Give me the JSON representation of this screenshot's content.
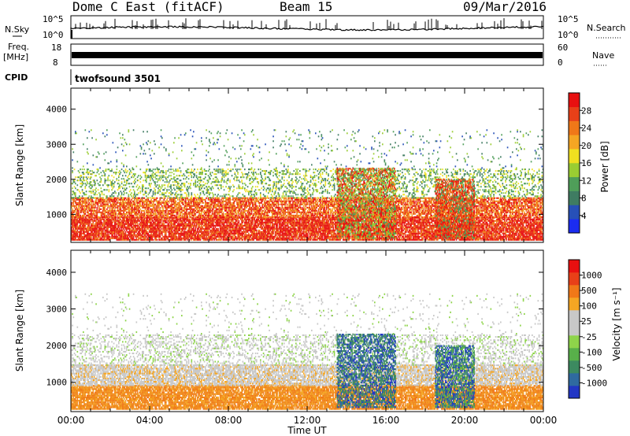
{
  "header": {
    "station": "Dome C East (fitACF)",
    "beam": "Beam 15",
    "date": "09/Mar/2016"
  },
  "panels": {
    "nsky_label": "N.Sky",
    "nsky_ticks": [
      "10^5",
      "10^0"
    ],
    "nsearch_label": "N.Search",
    "freq_label_1": "Freq.",
    "freq_label_2": "[MHz]",
    "freq_ticks": [
      "18",
      "8"
    ],
    "nave_label": "Nave",
    "nave_ticks": [
      "60",
      "0"
    ],
    "cpid_label": "CPID",
    "cpid_value": "twofsound  3501"
  },
  "chart_data": [
    {
      "type": "heatmap",
      "name": "power",
      "ylabel": "Slant Range [km]",
      "y_ticks": [
        1000,
        2000,
        3000,
        4000
      ],
      "ylim": [
        200,
        4600
      ],
      "x_ticks": [
        "00:00",
        "04:00",
        "08:00",
        "12:00",
        "16:00",
        "20:00",
        "00:00"
      ],
      "xlim_hours": [
        0,
        24
      ],
      "colorbar": {
        "label": "Power [dB]",
        "ticks": [
          "4",
          "8",
          "12",
          "16",
          "20",
          "24",
          "28"
        ],
        "colors": [
          "#1b2cf0",
          "#2750b8",
          "#3f7c62",
          "#4f9e59",
          "#9acd32",
          "#f0e020",
          "#f5a623",
          "#f07818",
          "#e84018",
          "#e81010"
        ]
      }
    },
    {
      "type": "heatmap",
      "name": "velocity",
      "ylabel": "Slant Range [km]",
      "y_ticks": [
        1000,
        2000,
        3000,
        4000
      ],
      "ylim": [
        200,
        4600
      ],
      "x_ticks": [
        "00:00",
        "04:00",
        "08:00",
        "12:00",
        "16:00",
        "20:00",
        "00:00"
      ],
      "xlabel": "Time UT",
      "xlim_hours": [
        0,
        24
      ],
      "colorbar": {
        "label": "Velocity [m s⁻¹]",
        "ticks": [
          "1000",
          "500",
          "100",
          "25",
          "-25",
          "-100",
          "-500",
          "-1000"
        ],
        "colors": [
          "#2236c4",
          "#2f6aa0",
          "#3c8a60",
          "#58b04a",
          "#8ed44a",
          "#c8c8c8",
          "#c8c8c8",
          "#f5a623",
          "#f07818",
          "#e84018",
          "#e81010"
        ]
      }
    }
  ],
  "colors": {
    "power_red": "#e82010",
    "power_orange": "#f07818",
    "power_yellow": "#f0d020",
    "power_green": "#4f9e59",
    "vel_orange": "#f08a1c",
    "vel_grey": "#c8c8c8",
    "vel_green": "#3c8a60",
    "vel_blue": "#2236c4"
  }
}
